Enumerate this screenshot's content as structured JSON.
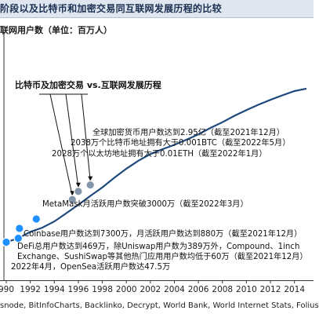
{
  "header": {
    "title": "阶段以及比特币和加密交易同互联网发展历程的比较",
    "accent": "#1b2f52"
  },
  "chart_data": {
    "type": "line",
    "ylabel": "联网用户数（单位：百万人）",
    "source": "snode, BitInfoCharts, Backlinko, Decrypt, World Bank, World Internet Stats, Folius",
    "xlim": [
      1990,
      2015
    ],
    "ylim": [
      0,
      3400
    ],
    "x_ticks": [
      "990",
      "1992",
      "1994",
      "1996",
      "1998",
      "2000",
      "2002",
      "2004",
      "2006",
      "2008",
      "2010",
      "2012",
      "2014"
    ],
    "x_tick_values": [
      1990,
      1992,
      1994,
      1996,
      1998,
      2000,
      2002,
      2004,
      2006,
      2008,
      2010,
      2012,
      2014
    ],
    "series": [
      {
        "color": "#1f497d",
        "points": [
          [
            1990,
            3
          ],
          [
            1991,
            5
          ],
          [
            1992,
            10
          ],
          [
            1993,
            15
          ],
          [
            1994,
            25
          ],
          [
            1995,
            45
          ],
          [
            1996,
            75
          ],
          [
            1997,
            120
          ],
          [
            1998,
            180
          ],
          [
            1999,
            270
          ],
          [
            2000,
            380
          ],
          [
            2001,
            500
          ],
          [
            2002,
            620
          ],
          [
            2003,
            720
          ],
          [
            2004,
            820
          ],
          [
            2005,
            950
          ],
          [
            2006,
            1100
          ],
          [
            2007,
            1300
          ],
          [
            2008,
            1500
          ],
          [
            2009,
            1750
          ],
          [
            2010,
            2000
          ],
          [
            2011,
            2250
          ],
          [
            2012,
            2500
          ],
          [
            2013,
            2750
          ],
          [
            2014,
            3000
          ],
          [
            2015,
            3150
          ]
        ]
      }
    ],
    "group_label": "比特币及加密交易 vs.互联网发展历程",
    "markers": [
      {
        "x": 1990,
        "y": 3,
        "color": "#1e90ff",
        "label": "2022年4月，OpenSea活跃用户数达47.5万"
      },
      {
        "x": 1991,
        "y": 5,
        "color": "#1e90ff",
        "label": "DeFi总用户数达到469万，除Uniswap用户数为389万外，Compound、1inch Exchange、SushiSwap等其他热门应用用户数均低于60万（截至2021年12月）"
      },
      {
        "x": 1991.1,
        "y": 14,
        "color": "#1e90ff",
        "label": "Coinbase用户数达到7300万，月活跃用户数达到880万（截至2021年12月）"
      },
      {
        "x": 1992.5,
        "y": 30,
        "color": "#1e90ff",
        "label": "MetaMask月活跃用户数突破3000万（截至2022年3月）"
      },
      {
        "x": 1995.5,
        "y": 100,
        "color": "#8496ab",
        "label": "2028万个以太坊地址拥有大于0.01ETH（截至2022年1月）"
      },
      {
        "x": 1996.0,
        "y": 150,
        "color": "#8496ab",
        "label": "2038万个比特币地址拥有大于0.001BTC（截至2022年5月）"
      },
      {
        "x": 1997.0,
        "y": 200,
        "color": "#8496ab",
        "label": "全球加密货币用户数达到2.95亿（截至2021年12月）"
      }
    ]
  }
}
